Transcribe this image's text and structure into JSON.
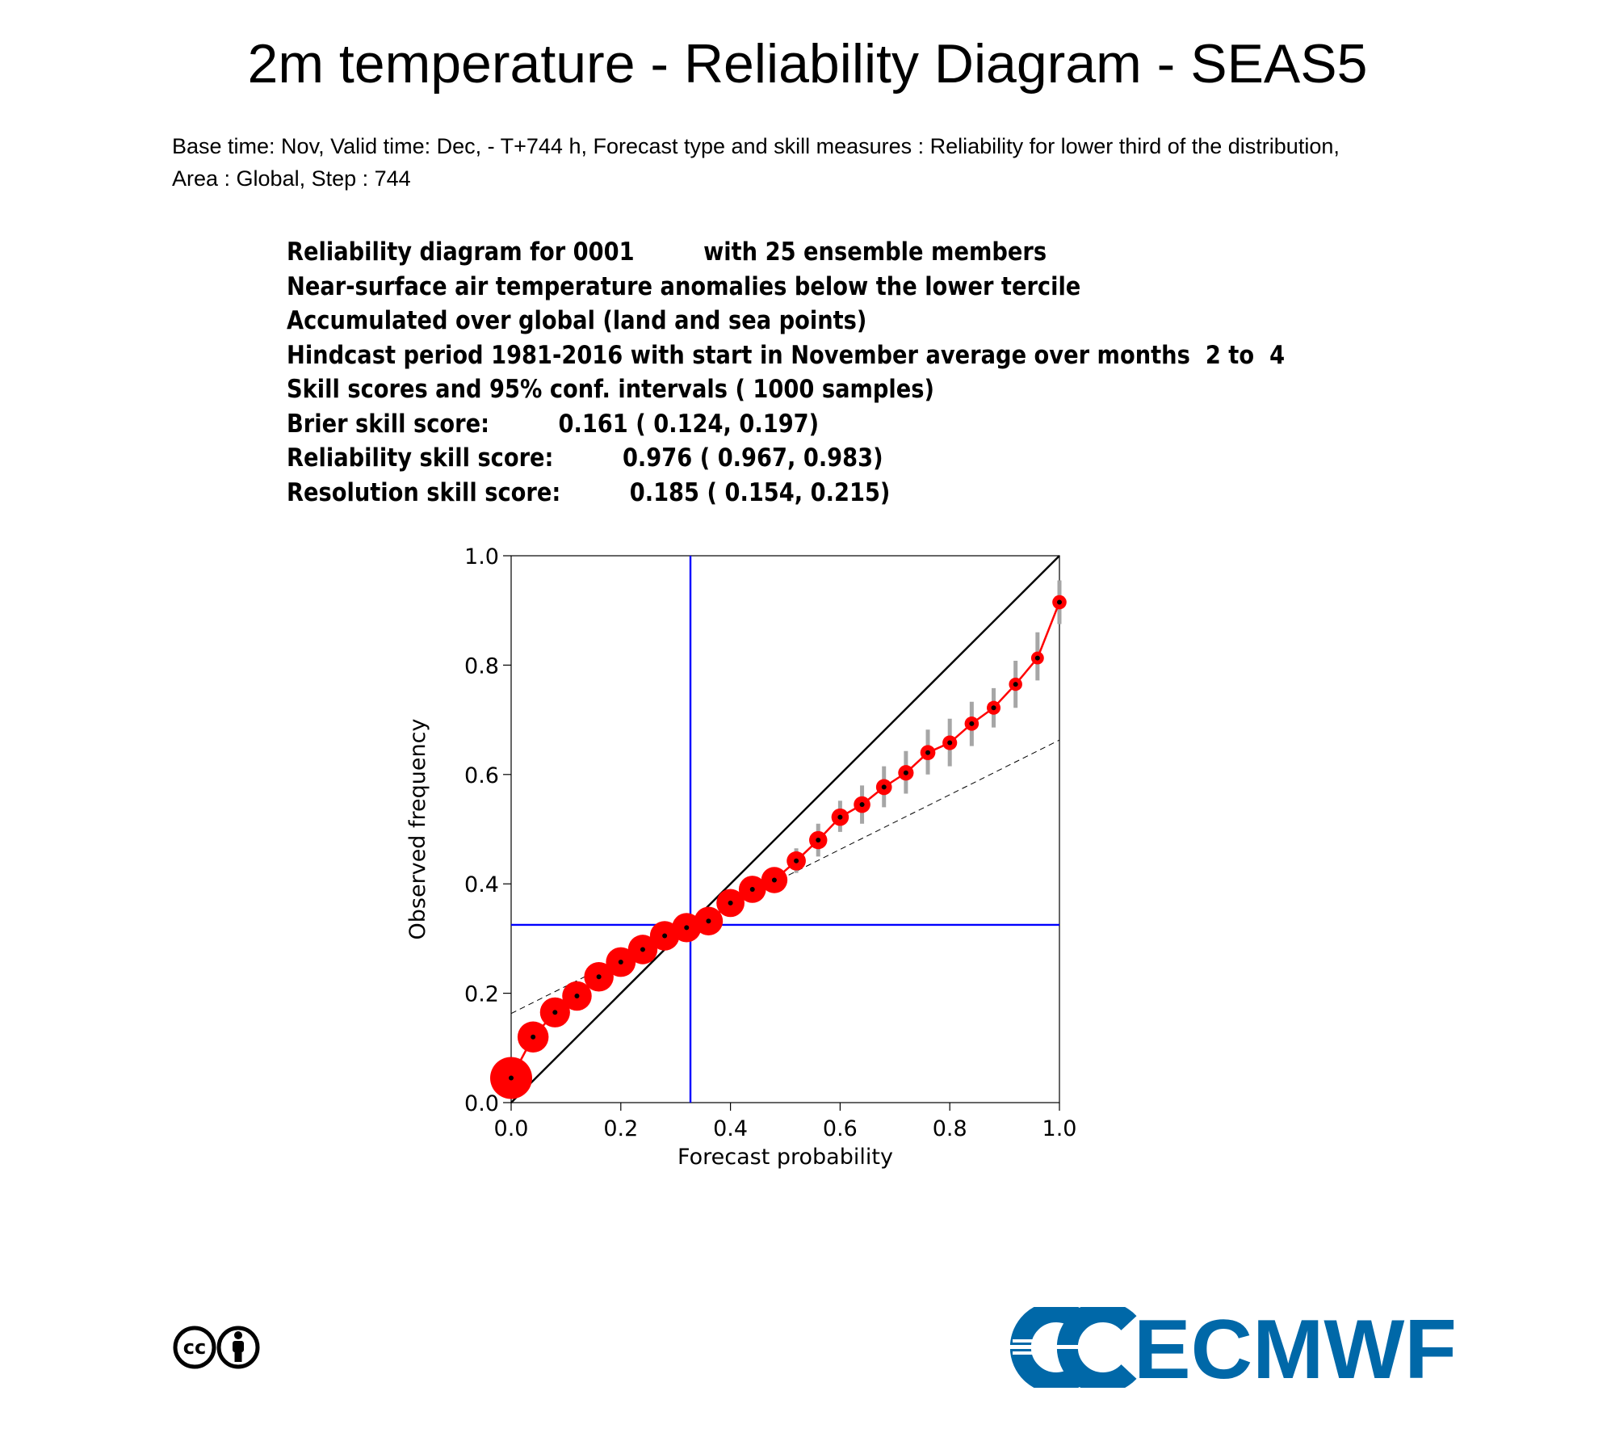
{
  "header": {
    "title": "2m temperature - Reliability Diagram - SEAS5",
    "subtitle_line1": "Base time: Nov, Valid time: Dec, - T+744 h, Forecast type and skill measures : Reliability for lower third of the distribution,",
    "subtitle_line2": "Area : Global, Step : 744"
  },
  "info_lines": [
    "Reliability diagram for 0001         with 25 ensemble members",
    "Near-surface air temperature anomalies below the lower tercile",
    "Accumulated over global (land and sea points)",
    "Hindcast period 1981-2016 with start in November average over months  2 to  4",
    "Skill scores and 95% conf. intervals ( 1000 samples)",
    "Brier skill score:         0.161 ( 0.124, 0.197)",
    "Reliability skill score:         0.976 ( 0.967, 0.983)",
    "Resolution skill score:         0.185 ( 0.154, 0.215)"
  ],
  "chart_data": {
    "type": "scatter",
    "xlabel": "Forecast probability",
    "ylabel": "Observed frequency",
    "xlim": [
      0,
      1
    ],
    "ylim": [
      0,
      1
    ],
    "xticks": [
      "0.0",
      "0.2",
      "0.4",
      "0.6",
      "0.8",
      "1.0"
    ],
    "yticks": [
      "0.0",
      "0.2",
      "0.4",
      "0.6",
      "0.8",
      "1.0"
    ],
    "grid": false,
    "reference_lines": {
      "diagonal": [
        [
          0,
          0
        ],
        [
          1,
          1
        ]
      ],
      "climatology_x": 0.327,
      "climatology_y": 0.325,
      "no_skill": [
        [
          0,
          0.163
        ],
        [
          1,
          0.663
        ]
      ]
    },
    "series": [
      {
        "x": [
          0.0,
          0.04,
          0.08,
          0.12,
          0.16,
          0.2,
          0.24,
          0.28,
          0.32,
          0.36,
          0.4,
          0.44,
          0.48,
          0.52,
          0.56,
          0.6,
          0.64,
          0.68,
          0.72,
          0.76,
          0.8,
          0.84,
          0.88,
          0.92,
          0.96,
          1.0
        ],
        "y": [
          0.045,
          0.12,
          0.165,
          0.195,
          0.23,
          0.257,
          0.28,
          0.305,
          0.32,
          0.332,
          0.365,
          0.39,
          0.407,
          0.442,
          0.48,
          0.522,
          0.545,
          0.577,
          0.603,
          0.64,
          0.658,
          0.693,
          0.722,
          0.765,
          0.813,
          0.915
        ],
        "ci_low": [
          0.04,
          0.115,
          0.16,
          0.19,
          0.224,
          0.25,
          0.272,
          0.297,
          0.31,
          0.32,
          0.35,
          0.374,
          0.39,
          0.42,
          0.45,
          0.495,
          0.51,
          0.54,
          0.565,
          0.6,
          0.615,
          0.652,
          0.686,
          0.722,
          0.772,
          0.875
        ],
        "ci_high": [
          0.05,
          0.125,
          0.17,
          0.2,
          0.236,
          0.264,
          0.288,
          0.313,
          0.33,
          0.344,
          0.38,
          0.406,
          0.424,
          0.465,
          0.51,
          0.552,
          0.58,
          0.615,
          0.643,
          0.682,
          0.702,
          0.733,
          0.758,
          0.808,
          0.86,
          0.955
        ],
        "relative_sample_size": [
          1.0,
          0.48,
          0.44,
          0.42,
          0.42,
          0.43,
          0.42,
          0.42,
          0.41,
          0.39,
          0.37,
          0.34,
          0.31,
          0.29,
          0.26,
          0.24,
          0.22,
          0.2,
          0.19,
          0.18,
          0.17,
          0.16,
          0.15,
          0.14,
          0.13,
          0.16
        ]
      }
    ],
    "colors": {
      "points": "#ff0000",
      "line": "#ff0000",
      "reference": "#0000ff",
      "confidence": "#a6a6a6"
    }
  },
  "logos": {
    "cc_text": "cc",
    "ecmwf_text": "ECMWF",
    "ecmwf_color": "#0068a8"
  }
}
